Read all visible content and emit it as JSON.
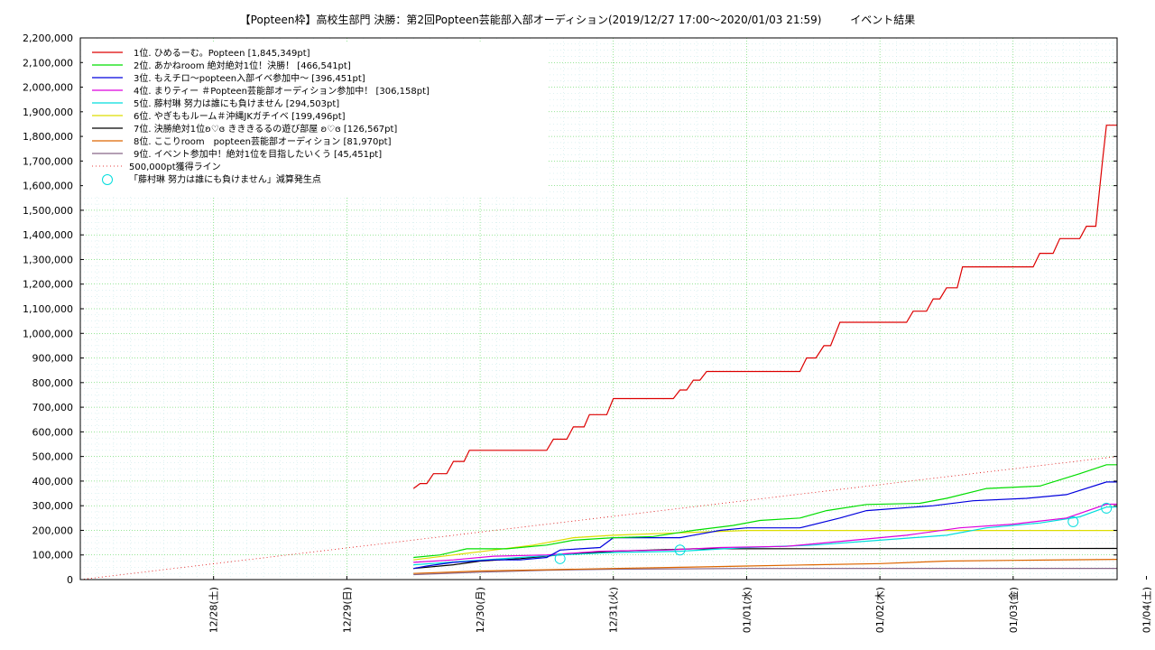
{
  "chart_data": {
    "type": "line",
    "title": "【Popteen枠】高校生部門 決勝：第2回Popteen芸能部入部オーディション(2019/12/27 17:00〜2020/01/03 21:59)",
    "subtitle": "イベント結果",
    "x_ticks": [
      "12/28(土)",
      "12/29(日)",
      "12/30(月)",
      "12/31(火)",
      "01/01(水)",
      "01/02(木)",
      "01/03(金)",
      "01/04(土)"
    ],
    "ylim": [
      0,
      2200000
    ],
    "y_ticks": [
      "0",
      "100,000",
      "200,000",
      "300,000",
      "400,000",
      "500,000",
      "600,000",
      "700,000",
      "800,000",
      "900,000",
      "1,000,000",
      "1,100,000",
      "1,200,000",
      "1,300,000",
      "1,400,000",
      "1,500,000",
      "1,600,000",
      "1,700,000",
      "1,800,000",
      "1,900,000",
      "2,000,000",
      "2,100,000",
      "2,200,000"
    ],
    "grid": true,
    "legend_position": "top-left",
    "series": [
      {
        "name": "1位. ひめるーむ。Popteen [1,845,349pt]",
        "color": "#dd0000",
        "points": [
          [
            2.5,
            370000
          ],
          [
            2.55,
            390000
          ],
          [
            2.6,
            390000
          ],
          [
            2.65,
            430000
          ],
          [
            2.75,
            430000
          ],
          [
            2.8,
            480000
          ],
          [
            2.88,
            480000
          ],
          [
            2.92,
            525000
          ],
          [
            3.5,
            525000
          ],
          [
            3.55,
            570000
          ],
          [
            3.65,
            570000
          ],
          [
            3.7,
            620000
          ],
          [
            3.78,
            620000
          ],
          [
            3.82,
            670000
          ],
          [
            3.95,
            670000
          ],
          [
            4.0,
            735000
          ],
          [
            4.45,
            735000
          ],
          [
            4.5,
            770000
          ],
          [
            4.55,
            770000
          ],
          [
            4.6,
            810000
          ],
          [
            4.65,
            810000
          ],
          [
            4.7,
            845000
          ],
          [
            5.4,
            845000
          ],
          [
            5.45,
            900000
          ],
          [
            5.52,
            900000
          ],
          [
            5.58,
            950000
          ],
          [
            5.63,
            950000
          ],
          [
            5.7,
            1045000
          ],
          [
            6.2,
            1045000
          ],
          [
            6.25,
            1090000
          ],
          [
            6.35,
            1090000
          ],
          [
            6.4,
            1140000
          ],
          [
            6.45,
            1140000
          ],
          [
            6.5,
            1185000
          ],
          [
            6.58,
            1185000
          ],
          [
            6.62,
            1270000
          ],
          [
            7.15,
            1270000
          ],
          [
            7.2,
            1325000
          ],
          [
            7.3,
            1325000
          ],
          [
            7.35,
            1385000
          ],
          [
            7.5,
            1385000
          ],
          [
            7.55,
            1435000
          ],
          [
            7.62,
            1435000
          ],
          [
            7.67,
            1700000
          ],
          [
            7.7,
            1845349
          ],
          [
            7.78,
            1845349
          ]
        ]
      },
      {
        "name": "2位. あかねroom 絶対絶対1位！決勝！ [466,541pt]",
        "color": "#00dd00",
        "points": [
          [
            2.5,
            90000
          ],
          [
            2.7,
            100000
          ],
          [
            2.9,
            125000
          ],
          [
            3.2,
            125000
          ],
          [
            3.5,
            140000
          ],
          [
            3.7,
            160000
          ],
          [
            4.0,
            170000
          ],
          [
            4.3,
            175000
          ],
          [
            4.6,
            200000
          ],
          [
            4.9,
            220000
          ],
          [
            5.1,
            240000
          ],
          [
            5.4,
            250000
          ],
          [
            5.6,
            280000
          ],
          [
            5.9,
            305000
          ],
          [
            6.3,
            310000
          ],
          [
            6.5,
            330000
          ],
          [
            6.8,
            370000
          ],
          [
            7.2,
            380000
          ],
          [
            7.5,
            430000
          ],
          [
            7.7,
            466541
          ],
          [
            7.78,
            466541
          ]
        ]
      },
      {
        "name": "3位. もえチロ〜popteen入部イベ参加中〜 [396,451pt]",
        "color": "#0000dd",
        "points": [
          [
            2.5,
            45000
          ],
          [
            2.6,
            55000
          ],
          [
            2.8,
            70000
          ],
          [
            3.1,
            80000
          ],
          [
            3.3,
            80000
          ],
          [
            3.5,
            90000
          ],
          [
            3.6,
            120000
          ],
          [
            3.9,
            130000
          ],
          [
            4.0,
            170000
          ],
          [
            4.5,
            170000
          ],
          [
            4.8,
            200000
          ],
          [
            5.0,
            210000
          ],
          [
            5.4,
            210000
          ],
          [
            5.7,
            250000
          ],
          [
            5.9,
            280000
          ],
          [
            6.4,
            300000
          ],
          [
            6.7,
            320000
          ],
          [
            7.1,
            330000
          ],
          [
            7.4,
            345000
          ],
          [
            7.7,
            396451
          ],
          [
            7.78,
            396451
          ]
        ]
      },
      {
        "name": "4位. まりティー ＃Popteen芸能部オーディション参加中！ [306,158pt]",
        "color": "#dd00dd",
        "points": [
          [
            2.5,
            70000
          ],
          [
            2.8,
            80000
          ],
          [
            3.1,
            95000
          ],
          [
            3.5,
            100000
          ],
          [
            3.9,
            115000
          ],
          [
            4.4,
            120000
          ],
          [
            4.8,
            130000
          ],
          [
            5.3,
            135000
          ],
          [
            5.8,
            160000
          ],
          [
            6.2,
            180000
          ],
          [
            6.6,
            210000
          ],
          [
            7.0,
            225000
          ],
          [
            7.4,
            250000
          ],
          [
            7.7,
            306158
          ],
          [
            7.78,
            306158
          ]
        ]
      },
      {
        "name": "5位. 藤村琳 努力は誰にも負けません [294,503pt]",
        "color": "#00dddd",
        "points": [
          [
            2.5,
            60000
          ],
          [
            2.9,
            75000
          ],
          [
            3.3,
            90000
          ],
          [
            3.6,
            100000
          ],
          [
            4.0,
            110000
          ],
          [
            4.5,
            115000
          ],
          [
            5.0,
            130000
          ],
          [
            5.5,
            140000
          ],
          [
            6.0,
            160000
          ],
          [
            6.5,
            180000
          ],
          [
            6.8,
            210000
          ],
          [
            7.2,
            230000
          ],
          [
            7.5,
            255000
          ],
          [
            7.7,
            294503
          ],
          [
            7.78,
            294503
          ]
        ]
      },
      {
        "name": "6位. やぎももルーム＃沖縄JKガチイベ [199,496pt]",
        "color": "#dddd00",
        "points": [
          [
            2.5,
            80000
          ],
          [
            2.8,
            100000
          ],
          [
            3.1,
            120000
          ],
          [
            3.4,
            140000
          ],
          [
            3.7,
            170000
          ],
          [
            4.0,
            180000
          ],
          [
            4.5,
            190000
          ],
          [
            5.0,
            199496
          ],
          [
            7.78,
            199496
          ]
        ]
      },
      {
        "name": "7位. 決勝絶対1位ʚ♡ɞ きききるるの遊び部屋 ʚ♡ɞ [126,567pt]",
        "color": "#000000",
        "points": [
          [
            2.5,
            45000
          ],
          [
            2.8,
            60000
          ],
          [
            3.0,
            75000
          ],
          [
            3.3,
            85000
          ],
          [
            3.6,
            100000
          ],
          [
            4.0,
            115000
          ],
          [
            4.6,
            125000
          ],
          [
            7.78,
            126567
          ]
        ]
      },
      {
        "name": "8位. ここりroom　popteen芸能部オーディション [81,970pt]",
        "color": "#dd6600",
        "points": [
          [
            2.5,
            25000
          ],
          [
            3.0,
            35000
          ],
          [
            3.5,
            40000
          ],
          [
            4.0,
            45000
          ],
          [
            4.5,
            50000
          ],
          [
            5.0,
            55000
          ],
          [
            5.5,
            60000
          ],
          [
            6.0,
            65000
          ],
          [
            6.5,
            75000
          ],
          [
            7.0,
            78000
          ],
          [
            7.78,
            81970
          ]
        ]
      },
      {
        "name": "9位. イベント参加中！絶対1位を目指したいくう [45,451pt]",
        "color": "#886688",
        "points": [
          [
            2.5,
            20000
          ],
          [
            3.0,
            30000
          ],
          [
            3.5,
            38000
          ],
          [
            4.0,
            42000
          ],
          [
            5.0,
            45000
          ],
          [
            7.78,
            45451
          ]
        ]
      }
    ],
    "reference_line": {
      "name": "500,000pt獲得ライン",
      "color": "#dd0000",
      "points": [
        [
          0,
          0
        ],
        [
          7.78,
          500000
        ]
      ]
    },
    "markers": {
      "name": "「藤村琳 努力は誰にも負けません」減算発生点",
      "color": "#00dddd",
      "points": [
        [
          3.6,
          85000
        ],
        [
          4.5,
          120000
        ],
        [
          7.45,
          235000
        ],
        [
          7.7,
          290000
        ]
      ]
    },
    "x_axis_note": "x values are days since 12/27 00:00; tick i at x=i+1"
  }
}
